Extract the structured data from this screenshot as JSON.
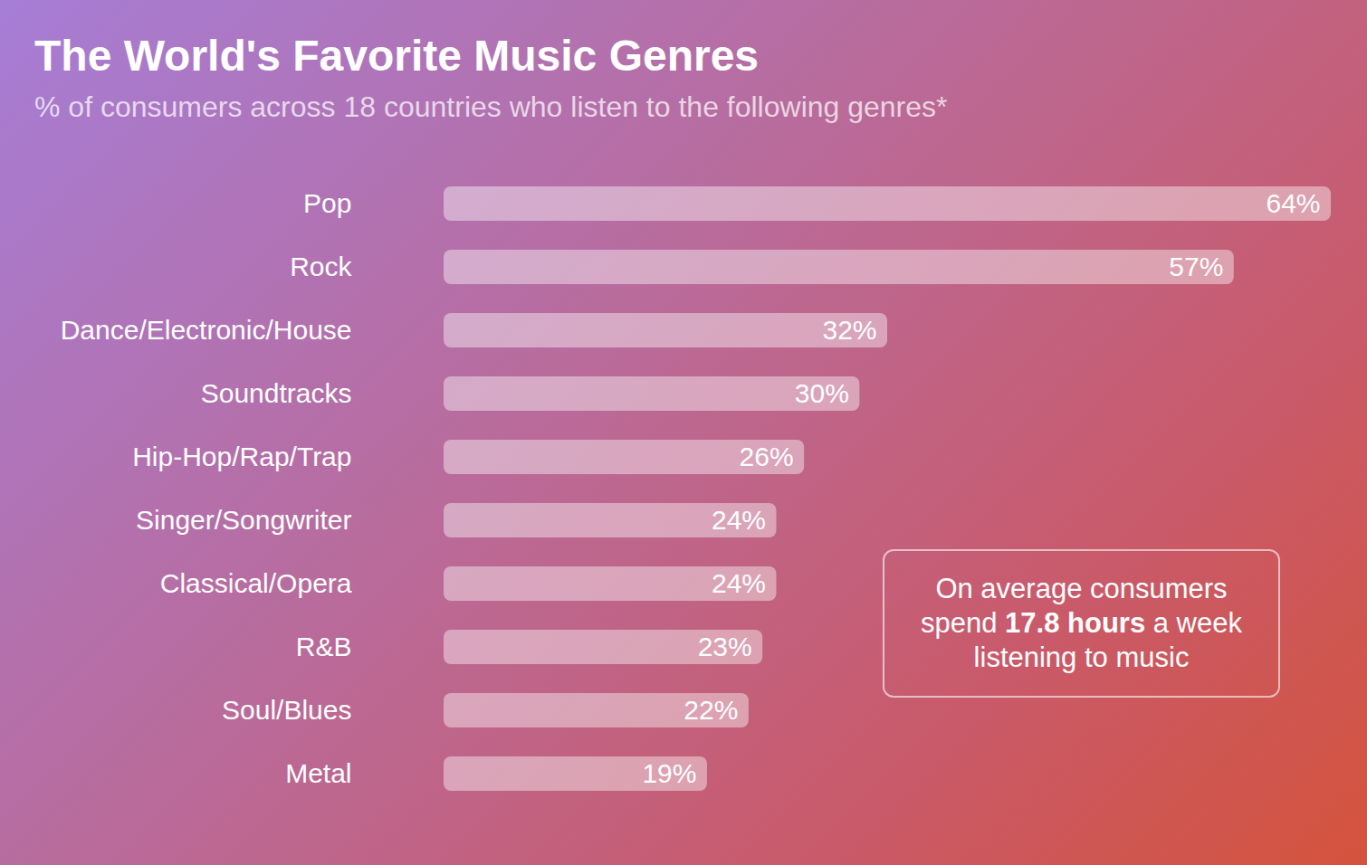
{
  "chart_data": {
    "type": "bar",
    "title": "The World's Favorite Music Genres",
    "subtitle": "% of consumers across 18 countries who listen to the following genres*",
    "orientation": "horizontal",
    "categories": [
      "Pop",
      "Rock",
      "Dance/Electronic/House",
      "Soundtracks",
      "Hip-Hop/Rap/Trap",
      "Singer/Songwriter",
      "Classical/Opera",
      "R&B",
      "Soul/Blues",
      "Metal"
    ],
    "values": [
      64,
      57,
      32,
      30,
      26,
      24,
      24,
      23,
      22,
      19
    ],
    "value_labels": [
      "64%",
      "57%",
      "32%",
      "30%",
      "26%",
      "24%",
      "24%",
      "23%",
      "22%",
      "19%"
    ],
    "data_labels": true,
    "tick_labels": "y",
    "grid": false,
    "color": "#ffffff",
    "annotations": [
      {
        "text": [
          "On average consumers spend",
          "17.8 hours",
          "a week listening to music"
        ]
      }
    ]
  }
}
